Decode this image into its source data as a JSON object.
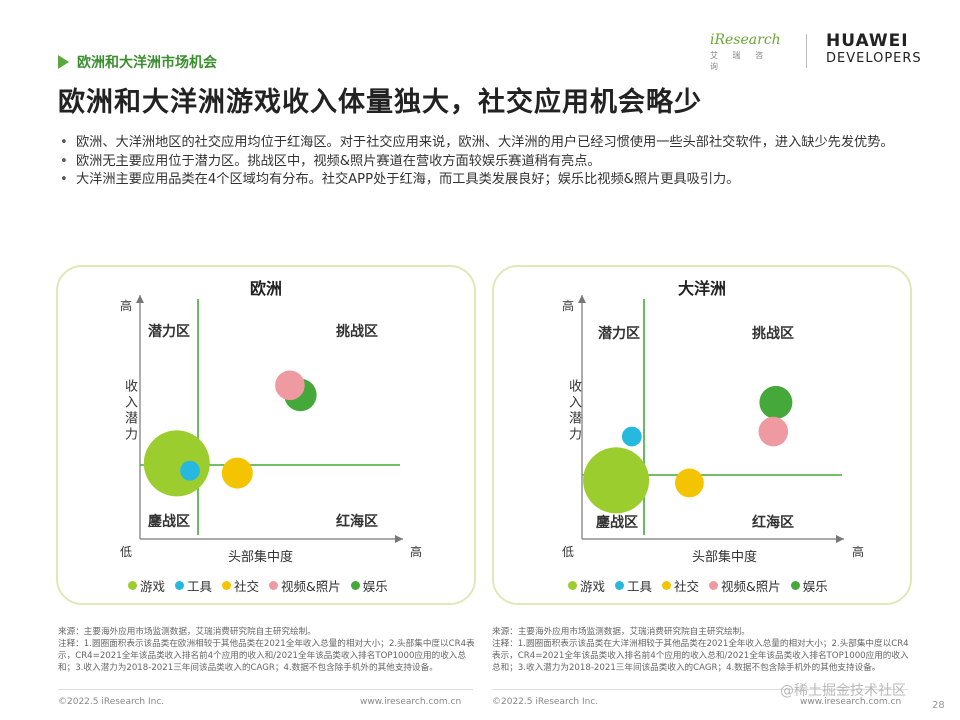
{
  "header": {
    "section_tag": "欧洲和大洋洲市场机会",
    "title": "欧洲和大洋洲游戏收入体量独大，社交应用机会略少",
    "logo_iresearch": "iResearch",
    "logo_iresearch_sub": "艾 瑞 咨 询",
    "logo_huawei": "HUAWEI",
    "logo_huawei_sub": "DEVELOPERS"
  },
  "bullets": [
    "欧洲、大洋洲地区的社交应用均位于红海区。对于社交应用来说，欧洲、大洋洲的用户已经习惯使用一些头部社交软件，进入缺少先发优势。",
    "欧洲无主要应用位于潜力区。挑战区中，视频&照片赛道在营收方面较娱乐赛道稍有亮点。",
    "大洋洲主要应用品类在4个区域均有分布。社交APP处于红海，而工具类发展良好；娱乐比视频&照片更具吸引力。"
  ],
  "axis_text": {
    "y_high": "高",
    "y_low": "低",
    "x_high": "高",
    "y_label": "收入潜力",
    "x_label": "头部集中度",
    "zone_potential": "潜力区",
    "zone_challenge": "挑战区",
    "zone_decline": "鏖战区",
    "zone_red": "红海区"
  },
  "legend": [
    {
      "label": "游戏",
      "color": "#9ccd2e"
    },
    {
      "label": "工具",
      "color": "#27b8e0"
    },
    {
      "label": "社交",
      "color": "#f5c400"
    },
    {
      "label": "视频&照片",
      "color": "#ef9aa0"
    },
    {
      "label": "娱乐",
      "color": "#45a83a"
    }
  ],
  "chart_data": [
    {
      "type": "scatter",
      "title": "欧洲",
      "xlabel": "头部集中度",
      "ylabel": "收入潜力",
      "xlim": [
        "低",
        "高"
      ],
      "ylim": [
        "低",
        "高"
      ],
      "bubble_area": "relative size of category's 2021 revenue",
      "points": [
        {
          "name": "游戏",
          "color": "#9ccd2e",
          "x": 0.14,
          "y": 0.31,
          "size": 1.0
        },
        {
          "name": "工具",
          "color": "#27b8e0",
          "x": 0.19,
          "y": 0.28,
          "size": 0.09
        },
        {
          "name": "社交",
          "color": "#f5c400",
          "x": 0.37,
          "y": 0.27,
          "size": 0.22
        },
        {
          "name": "视频&照片",
          "color": "#ef9aa0",
          "x": 0.57,
          "y": 0.63,
          "size": 0.2
        },
        {
          "name": "娱乐",
          "color": "#45a83a",
          "x": 0.61,
          "y": 0.59,
          "size": 0.24
        }
      ]
    },
    {
      "type": "scatter",
      "title": "大洋洲",
      "xlabel": "头部集中度",
      "ylabel": "收入潜力",
      "xlim": [
        "低",
        "高"
      ],
      "ylim": [
        "低",
        "高"
      ],
      "bubble_area": "relative size of category's 2021 revenue",
      "points": [
        {
          "name": "游戏",
          "color": "#9ccd2e",
          "x": 0.13,
          "y": 0.24,
          "size": 1.0
        },
        {
          "name": "工具",
          "color": "#27b8e0",
          "x": 0.19,
          "y": 0.42,
          "size": 0.09
        },
        {
          "name": "社交",
          "color": "#f5c400",
          "x": 0.41,
          "y": 0.23,
          "size": 0.19
        },
        {
          "name": "视频&照片",
          "color": "#ef9aa0",
          "x": 0.73,
          "y": 0.44,
          "size": 0.2
        },
        {
          "name": "娱乐",
          "color": "#45a83a",
          "x": 0.74,
          "y": 0.56,
          "size": 0.25
        }
      ]
    }
  ],
  "notes": {
    "left": "来源：主要海外应用市场监测数据，艾瑞消费研究院自主研究绘制。\n注释：1.圆圈面积表示该品类在欧洲相较于其他品类在2021全年收入总量的相对大小；2.头部集中度以CR4表示，CR4=2021全年该品类收入排名前4个应用的收入和/2021全年该品类收入排名TOP1000应用的收入总和；3.收入潜力为2018-2021三年间该品类收入的CAGR；4.数据不包含除手机外的其他支持设备。",
    "right": "来源：主要海外应用市场监测数据，艾瑞消费研究院自主研究绘制。\n注释：1.圆圈面积表示该品类在大洋洲相较于其他品类在2021全年收入总量的相对大小；2.头部集中度以CR4表示，CR4=2021全年该品类收入排名前4个应用的收入总和/2021全年该品类收入排名TOP1000应用的收入总和；3.收入潜力为2018-2021三年间该品类收入的CAGR；4.数据不包含除手机外的其他支持设备。"
  },
  "footer": {
    "left_copyright": "©2022.5 iResearch Inc.",
    "left_url": "www.iresearch.com.cn",
    "right_copyright": "©2022.5 iResearch Inc.",
    "right_url": "www.iresearch.com.cn",
    "watermark": "@稀土掘金技术社区",
    "page_number": "28"
  }
}
